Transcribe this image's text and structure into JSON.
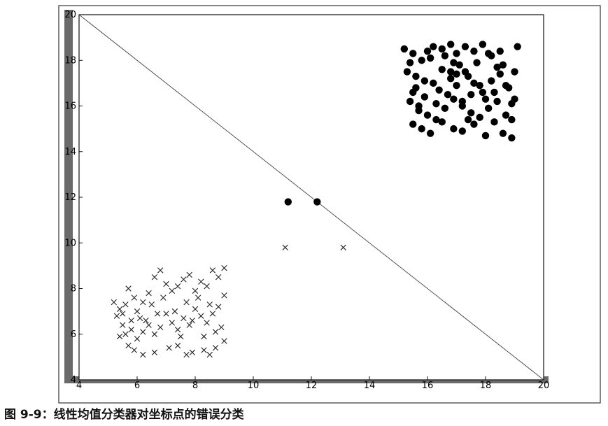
{
  "caption": "图 9-9：线性均值分类器对坐标点的错误分类",
  "chart_data": {
    "type": "scatter",
    "title": "",
    "xlabel": "",
    "ylabel": "",
    "xlim": [
      4,
      20
    ],
    "ylim": [
      4,
      20
    ],
    "xticks": [
      4,
      6,
      8,
      10,
      12,
      14,
      16,
      18,
      20
    ],
    "yticks": [
      4,
      6,
      8,
      10,
      12,
      14,
      16,
      18,
      20
    ],
    "grid": false,
    "line": {
      "x": [
        4,
        20
      ],
      "y": [
        20,
        4
      ]
    },
    "series": [
      {
        "marker": "circle",
        "color": "#000000",
        "points": [
          [
            15.2,
            18.5
          ],
          [
            15.4,
            17.9
          ],
          [
            15.5,
            18.3
          ],
          [
            15.6,
            17.3
          ],
          [
            15.8,
            18.0
          ],
          [
            16.0,
            18.4
          ],
          [
            16.2,
            18.6
          ],
          [
            16.5,
            18.5
          ],
          [
            16.8,
            18.7
          ],
          [
            17.0,
            18.3
          ],
          [
            17.3,
            18.6
          ],
          [
            17.6,
            18.4
          ],
          [
            17.9,
            18.7
          ],
          [
            18.2,
            18.2
          ],
          [
            18.5,
            18.4
          ],
          [
            19.1,
            18.6
          ],
          [
            15.3,
            17.5
          ],
          [
            15.6,
            16.8
          ],
          [
            15.9,
            16.4
          ],
          [
            16.2,
            17.0
          ],
          [
            16.5,
            17.6
          ],
          [
            16.8,
            17.2
          ],
          [
            17.0,
            16.9
          ],
          [
            17.3,
            17.5
          ],
          [
            17.6,
            17.0
          ],
          [
            17.9,
            16.6
          ],
          [
            18.2,
            17.1
          ],
          [
            18.5,
            17.4
          ],
          [
            18.8,
            16.8
          ],
          [
            19.0,
            17.5
          ],
          [
            15.4,
            16.2
          ],
          [
            15.7,
            15.8
          ],
          [
            16.0,
            15.6
          ],
          [
            16.3,
            16.1
          ],
          [
            16.6,
            15.9
          ],
          [
            16.9,
            16.3
          ],
          [
            17.2,
            16.0
          ],
          [
            17.5,
            15.7
          ],
          [
            17.8,
            15.5
          ],
          [
            18.1,
            15.9
          ],
          [
            18.4,
            16.2
          ],
          [
            18.7,
            15.6
          ],
          [
            19.0,
            16.3
          ],
          [
            15.5,
            15.2
          ],
          [
            15.8,
            15.0
          ],
          [
            16.1,
            14.8
          ],
          [
            16.5,
            15.3
          ],
          [
            16.9,
            15.0
          ],
          [
            17.2,
            14.9
          ],
          [
            17.6,
            15.2
          ],
          [
            18.0,
            14.7
          ],
          [
            18.3,
            15.3
          ],
          [
            18.6,
            14.8
          ],
          [
            18.9,
            14.6
          ],
          [
            18.9,
            15.4
          ],
          [
            16.4,
            16.7
          ],
          [
            16.7,
            16.5
          ],
          [
            17.1,
            17.8
          ],
          [
            17.4,
            17.3
          ],
          [
            17.7,
            17.9
          ],
          [
            18.0,
            16.3
          ],
          [
            18.3,
            16.6
          ],
          [
            15.9,
            17.1
          ],
          [
            16.1,
            18.1
          ],
          [
            17.0,
            17.4
          ],
          [
            17.2,
            16.2
          ],
          [
            18.6,
            17.8
          ],
          [
            18.9,
            16.1
          ],
          [
            16.8,
            17.5
          ],
          [
            15.7,
            16.0
          ],
          [
            16.6,
            18.2
          ],
          [
            17.8,
            16.9
          ],
          [
            18.4,
            17.7
          ],
          [
            15.5,
            16.6
          ],
          [
            17.4,
            15.4
          ],
          [
            18.7,
            16.9
          ],
          [
            16.3,
            15.4
          ],
          [
            16.9,
            17.9
          ],
          [
            18.1,
            18.3
          ],
          [
            17.5,
            16.5
          ],
          [
            11.2,
            11.8
          ],
          [
            12.2,
            11.8
          ]
        ]
      },
      {
        "marker": "x",
        "color": "#222222",
        "points": [
          [
            5.2,
            7.4
          ],
          [
            5.4,
            7.1
          ],
          [
            5.6,
            7.3
          ],
          [
            5.3,
            6.8
          ],
          [
            5.5,
            6.4
          ],
          [
            5.8,
            6.6
          ],
          [
            6.0,
            7.0
          ],
          [
            6.2,
            7.4
          ],
          [
            5.9,
            7.6
          ],
          [
            5.7,
            8.0
          ],
          [
            6.4,
            7.8
          ],
          [
            6.6,
            8.5
          ],
          [
            6.8,
            8.8
          ],
          [
            7.0,
            8.2
          ],
          [
            7.2,
            7.9
          ],
          [
            7.4,
            8.1
          ],
          [
            7.6,
            8.4
          ],
          [
            7.8,
            8.6
          ],
          [
            8.0,
            7.9
          ],
          [
            8.2,
            8.3
          ],
          [
            8.4,
            8.1
          ],
          [
            8.6,
            8.8
          ],
          [
            8.8,
            8.5
          ],
          [
            9.0,
            8.9
          ],
          [
            9.0,
            7.7
          ],
          [
            8.8,
            7.2
          ],
          [
            8.6,
            6.9
          ],
          [
            8.4,
            6.5
          ],
          [
            8.2,
            6.8
          ],
          [
            8.0,
            7.1
          ],
          [
            7.8,
            6.4
          ],
          [
            7.6,
            6.7
          ],
          [
            7.4,
            6.2
          ],
          [
            7.2,
            6.5
          ],
          [
            7.0,
            6.9
          ],
          [
            6.8,
            6.3
          ],
          [
            6.6,
            6.0
          ],
          [
            6.4,
            6.4
          ],
          [
            6.2,
            6.1
          ],
          [
            6.0,
            5.8
          ],
          [
            5.8,
            6.2
          ],
          [
            5.6,
            6.0
          ],
          [
            5.4,
            5.9
          ],
          [
            5.5,
            6.9
          ],
          [
            6.1,
            6.7
          ],
          [
            6.5,
            7.3
          ],
          [
            6.9,
            7.6
          ],
          [
            7.3,
            7.0
          ],
          [
            7.7,
            7.4
          ],
          [
            8.1,
            7.6
          ],
          [
            8.5,
            7.3
          ],
          [
            8.9,
            6.3
          ],
          [
            9.0,
            5.7
          ],
          [
            8.7,
            5.4
          ],
          [
            8.5,
            5.1
          ],
          [
            8.3,
            5.3
          ],
          [
            7.9,
            5.2
          ],
          [
            7.7,
            5.1
          ],
          [
            7.4,
            5.5
          ],
          [
            7.1,
            5.4
          ],
          [
            6.6,
            5.2
          ],
          [
            6.2,
            5.1
          ],
          [
            5.9,
            5.3
          ],
          [
            5.7,
            5.5
          ],
          [
            6.3,
            6.6
          ],
          [
            7.5,
            5.9
          ],
          [
            8.3,
            5.9
          ],
          [
            8.7,
            6.1
          ],
          [
            6.7,
            6.9
          ],
          [
            7.9,
            6.6
          ],
          [
            11.1,
            9.8
          ],
          [
            13.1,
            9.8
          ]
        ]
      }
    ]
  }
}
